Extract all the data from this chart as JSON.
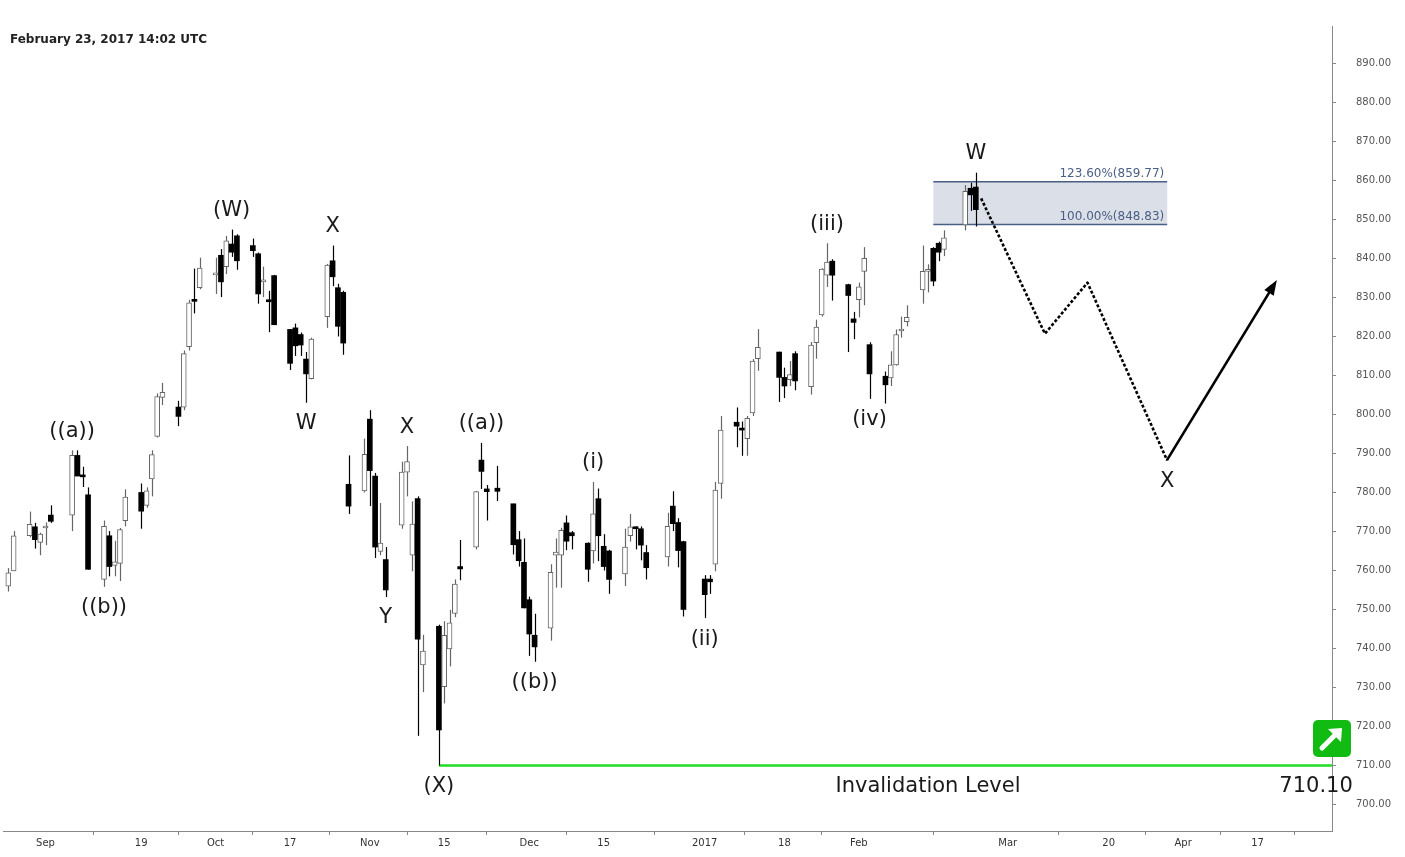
{
  "chart_data": {
    "type": "candlestick",
    "subtitle": "February 23, 2017 14:02 UTC",
    "colors": [
      "#666666",
      "#666666",
      "#666666",
      "#000000",
      "#666666",
      "#666666",
      "#000000",
      "#666666",
      "#000000",
      "#000000",
      "#000000",
      "#666666",
      "#000000",
      "#666666",
      "#666666",
      "#666666",
      "#000000",
      "#666666",
      "#666666",
      "#666666",
      "#666666",
      "#000000",
      "#666666",
      "#666666",
      "#000000",
      "#666666",
      "#666666",
      "#000000",
      "#666666",
      "#000000",
      "#000000",
      "#000000",
      "#000000",
      "#666666",
      "#000000",
      "#000000",
      "#000000",
      "#000000",
      "#000000",
      "#000000",
      "#666666",
      "#666666",
      "#000000",
      "#000000",
      "#000000",
      "#000000",
      "#666666",
      "#000000",
      "#000000",
      "#666666",
      "#000000",
      "#666666",
      "#666666",
      "#666666",
      "#000000",
      "#666666",
      "#000000",
      "#666666",
      "#666666",
      "#666666",
      "#000000",
      "#666666",
      "#000000",
      "#000000",
      "#000000",
      "#000000",
      "#000000",
      "#000000",
      "#000000",
      "#000000",
      "#666666",
      "#666666",
      "#666666",
      "#000000",
      "#000000",
      "#000000",
      "#666666",
      "#000000",
      "#000000",
      "#000000",
      "#666666",
      "#666666",
      "#000000",
      "#000000",
      "#000000",
      "#666666",
      "#000000",
      "#000000",
      "#000000",
      "#000000",
      "#000000",
      "#666666",
      "#666666",
      "#000000",
      "#000000",
      "#666666",
      "#666666",
      "#666666",
      "#000000",
      "#000000",
      "#666666",
      "#000000",
      "#666666",
      "#666666",
      "#666666",
      "#666666",
      "#000000",
      "#000000",
      "#000000",
      "#666666",
      "#666666",
      "#000000",
      "#000000",
      "#666666",
      "#666666",
      "#666666",
      "#666666",
      "#666666",
      "#666666",
      "#000000",
      "#000000",
      "#666666",
      "#666666",
      "#000000",
      "#000000"
    ],
    "x": [
      "2016-08-25",
      "2016-08-26",
      "2016-08-29",
      "2016-08-30",
      "2016-08-31",
      "2016-09-01",
      "2016-09-02",
      "2016-09-06",
      "2016-09-07",
      "2016-09-08",
      "2016-09-09",
      "2016-09-12",
      "2016-09-13",
      "2016-09-14",
      "2016-09-15",
      "2016-09-16",
      "2016-09-19",
      "2016-09-20",
      "2016-09-21",
      "2016-09-22",
      "2016-09-23",
      "2016-09-26",
      "2016-09-27",
      "2016-09-28",
      "2016-09-29",
      "2016-09-30",
      "2016-10-03",
      "2016-10-04",
      "2016-10-05",
      "2016-10-06",
      "2016-10-07",
      "2016-10-10",
      "2016-10-11",
      "2016-10-12",
      "2016-10-13",
      "2016-10-14",
      "2016-10-17",
      "2016-10-18",
      "2016-10-19",
      "2016-10-20",
      "2016-10-21",
      "2016-10-24",
      "2016-10-25",
      "2016-10-26",
      "2016-10-27",
      "2016-10-28",
      "2016-10-31",
      "2016-11-01",
      "2016-11-02",
      "2016-11-03",
      "2016-11-04",
      "2016-11-07",
      "2016-11-08",
      "2016-11-09",
      "2016-11-10",
      "2016-11-11",
      "2016-11-14",
      "2016-11-15",
      "2016-11-16",
      "2016-11-17",
      "2016-11-18",
      "2016-11-21",
      "2016-11-22",
      "2016-11-23",
      "2016-11-25",
      "2016-11-28",
      "2016-11-29",
      "2016-11-30",
      "2016-12-01",
      "2016-12-02",
      "2016-12-05",
      "2016-12-06",
      "2016-12-07",
      "2016-12-08",
      "2016-12-09",
      "2016-12-12",
      "2016-12-13",
      "2016-12-14",
      "2016-12-15",
      "2016-12-16",
      "2016-12-19",
      "2016-12-20",
      "2016-12-21",
      "2016-12-22",
      "2016-12-23",
      "2016-12-27",
      "2016-12-28",
      "2016-12-29",
      "2016-12-30",
      "2017-01-03",
      "2017-01-04",
      "2017-01-05",
      "2017-01-06",
      "2017-01-09",
      "2017-01-10",
      "2017-01-11",
      "2017-01-12",
      "2017-01-13",
      "2017-01-17",
      "2017-01-18",
      "2017-01-19",
      "2017-01-20",
      "2017-01-23",
      "2017-01-24",
      "2017-01-25",
      "2017-01-26",
      "2017-01-27",
      "2017-01-30",
      "2017-01-31",
      "2017-02-01",
      "2017-02-02",
      "2017-02-03",
      "2017-02-06",
      "2017-02-07",
      "2017-02-08",
      "2017-02-09",
      "2017-02-10",
      "2017-02-13",
      "2017-02-14",
      "2017-02-15",
      "2017-02-16",
      "2017-02-17",
      "2017-02-21",
      "2017-02-22",
      "2017-02-23"
    ],
    "ohlc": [
      [
        756.1,
        760.7,
        754.7,
        759.5
      ],
      [
        760.0,
        770.2,
        759.9,
        769.0
      ],
      [
        769.0,
        775.2,
        768.6,
        771.9
      ],
      [
        771.3,
        772.3,
        765.7,
        768.0
      ],
      [
        767.3,
        769.8,
        764.0,
        769.4
      ],
      [
        771.0,
        772.4,
        766.6,
        771.0
      ],
      [
        774.3,
        776.8,
        772.3,
        772.7
      ],
      [
        774.3,
        790.9,
        770.2,
        789.6
      ],
      [
        789.6,
        790.9,
        784.3,
        784.3
      ],
      [
        784.3,
        786.7,
        781.5,
        784.1
      ],
      [
        779.5,
        781.4,
        760.3,
        760.4
      ],
      [
        757.8,
        772.9,
        755.9,
        771.4
      ],
      [
        769.0,
        770.2,
        758.6,
        761.1
      ],
      [
        761.4,
        767.7,
        758.6,
        762.3
      ],
      [
        761.9,
        771.0,
        757.4,
        770.6
      ],
      [
        772.9,
        780.9,
        771.4,
        778.9
      ],
      [
        780.1,
        782.4,
        770.8,
        775.3
      ],
      [
        776.8,
        781.4,
        776.2,
        780.5
      ],
      [
        783.6,
        790.9,
        779.1,
        789.8
      ],
      [
        794.5,
        805.5,
        794.2,
        804.7
      ],
      [
        804.5,
        808.2,
        802.5,
        805.8
      ],
      [
        802.0,
        803.6,
        797.1,
        799.6
      ],
      [
        802.0,
        816.5,
        801.2,
        815.7
      ],
      [
        817.5,
        829.5,
        816.5,
        828.7
      ],
      [
        829.3,
        837.5,
        826.0,
        829.1
      ],
      [
        832.6,
        840.3,
        832.2,
        837.6
      ],
      [
        835.9,
        840.3,
        831.0,
        836.2
      ],
      [
        840.9,
        842.5,
        830.2,
        834.1
      ],
      [
        838.0,
        845.9,
        836.1,
        844.6
      ],
      [
        843.8,
        847.5,
        840.5,
        841.7
      ],
      [
        845.9,
        846.3,
        837.2,
        839.5
      ],
      [
        843.4,
        845.2,
        840.5,
        842.1
      ],
      [
        841.3,
        841.6,
        828.5,
        831.0
      ],
      [
        834.1,
        838.0,
        830.2,
        834.1
      ],
      [
        829.2,
        831.8,
        821.2,
        829.0
      ],
      [
        835.7,
        835.9,
        823.1,
        823.1
      ],
      [
        821.9,
        822.0,
        811.5,
        813.2
      ],
      [
        822.3,
        823.4,
        815.1,
        817.7
      ],
      [
        820.6,
        821.1,
        815.1,
        817.9
      ],
      [
        814.3,
        816.1,
        803.1,
        810.5
      ],
      [
        809.3,
        819.8,
        809.1,
        819.4
      ],
      [
        825.2,
        838.7,
        822.3,
        838.4
      ],
      [
        839.5,
        843.4,
        833.0,
        835.4
      ],
      [
        832.6,
        833.6,
        820.1,
        822.7
      ],
      [
        831.4,
        831.8,
        815.4,
        818.4
      ],
      [
        782.2,
        789.6,
        774.6,
        776.6
      ],
      [
        780.5,
        793.9,
        780.1,
        789.9
      ],
      [
        798.9,
        801.2,
        776.6,
        785.7
      ],
      [
        784.3,
        785.1,
        763.3,
        766.1
      ],
      [
        765.0,
        777.4,
        764.0,
        767.1
      ],
      [
        762.9,
        766.1,
        753.3,
        755.1
      ],
      [
        771.7,
        788.0,
        770.8,
        785.3
      ],
      [
        785.3,
        792.0,
        779.1,
        788.0
      ],
      [
        764.0,
        777.8,
        759.9,
        772.0
      ],
      [
        778.5,
        779.1,
        717.7,
        742.5
      ],
      [
        735.9,
        743.6,
        728.9,
        739.4
      ],
      [
        745.8,
        746.2,
        710.1,
        719.2
      ],
      [
        730.3,
        747.1,
        726.0,
        743.5
      ],
      [
        740.0,
        750.0,
        735.5,
        746.7
      ],
      [
        749.1,
        757.8,
        748.1,
        756.6
      ],
      [
        761.1,
        767.9,
        757.6,
        760.5
      ],
      [
        766.1,
        780.5,
        765.5,
        780.3
      ],
      [
        788.4,
        792.8,
        781.0,
        785.5
      ],
      [
        781.0,
        782.0,
        772.9,
        780.3
      ],
      [
        781.2,
        786.9,
        777.9,
        780.4
      ],
      [
        777.2,
        777.2,
        764.2,
        766.7
      ],
      [
        768.0,
        770.2,
        761.1,
        762.6
      ],
      [
        762.2,
        768.3,
        750.4,
        750.5
      ],
      [
        752.6,
        753.4,
        738.2,
        743.8
      ],
      [
        743.5,
        749.0,
        736.7,
        740.5
      ],
      [
        745.3,
        761.7,
        742.1,
        759.6
      ],
      [
        764.0,
        768.3,
        755.7,
        764.8
      ],
      [
        764.0,
        771.0,
        755.7,
        770.4
      ],
      [
        772.3,
        774.2,
        765.3,
        767.6
      ],
      [
        769.8,
        770.2,
        765.5,
        769.0
      ],
      [
        767.1,
        767.3,
        757.2,
        760.4
      ],
      [
        765.1,
        782.8,
        761.9,
        774.6
      ],
      [
        778.5,
        781.1,
        762.5,
        769.0
      ],
      [
        766.3,
        769.4,
        760.1,
        761.1
      ],
      [
        765.1,
        765.4,
        754.1,
        757.8
      ],
      [
        759.2,
        770.8,
        756.1,
        766.1
      ],
      [
        769.0,
        774.6,
        767.5,
        771.3
      ],
      [
        771.0,
        771.4,
        765.5,
        770.8
      ],
      [
        770.8,
        771.4,
        762.7,
        766.6
      ],
      [
        764.7,
        766.6,
        757.8,
        760.8
      ],
      [
        763.6,
        774.9,
        761.1,
        771.4
      ],
      [
        776.6,
        780.4,
        770.2,
        772.1
      ],
      [
        772.4,
        773.5,
        760.9,
        765.2
      ],
      [
        767.5,
        767.7,
        748.3,
        750.1
      ],
      [
        757.9,
        758.9,
        747.9,
        753.9
      ],
      [
        757.9,
        758.9,
        754.1,
        757.2
      ],
      [
        761.7,
        782.8,
        759.9,
        780.7
      ],
      [
        782.4,
        799.7,
        778.5,
        796.1
      ],
      [
        798.1,
        801.9,
        791.7,
        797.1
      ],
      [
        796.4,
        798.3,
        789.5,
        796.1
      ],
      [
        793.9,
        799.7,
        789.5,
        799.1
      ],
      [
        800.5,
        814.3,
        799.7,
        813.8
      ],
      [
        814.4,
        822.0,
        811.3,
        817.3
      ],
      [
        816.1,
        816.2,
        803.3,
        809.6
      ],
      [
        809.6,
        812.1,
        804.3,
        807.4
      ],
      [
        809.0,
        813.8,
        807.4,
        810.3
      ],
      [
        815.7,
        816.3,
        806.3,
        808.7
      ],
      [
        807.2,
        818.7,
        805.2,
        817.9
      ],
      [
        818.5,
        824.4,
        814.4,
        822.5
      ],
      [
        825.6,
        837.6,
        825.2,
        837.4
      ],
      [
        835.8,
        844.0,
        832.8,
        839.2
      ],
      [
        839.4,
        839.9,
        829.3,
        835.8
      ],
      [
        833.4,
        833.6,
        816.1,
        830.6
      ],
      [
        824.6,
        826.4,
        819.4,
        823.7
      ],
      [
        829.5,
        833.9,
        825.0,
        832.8
      ],
      [
        836.8,
        843.0,
        828.1,
        840.1
      ],
      [
        818.0,
        818.6,
        804.1,
        810.5
      ],
      [
        809.9,
        811.1,
        802.9,
        807.7
      ],
      [
        809.5,
        816.3,
        807.4,
        812.8
      ],
      [
        812.8,
        821.9,
        812.6,
        820.6
      ],
      [
        821.5,
        825.2,
        819.8,
        822.0
      ],
      [
        823.9,
        828.1,
        822.7,
        825.0
      ],
      [
        832.0,
        843.4,
        828.5,
        836.8
      ],
      [
        836.8,
        838.6,
        831.4,
        836.8
      ],
      [
        842.7,
        843.0,
        833.0,
        834.3
      ],
      [
        844.0,
        844.4,
        839.4,
        841.7
      ],
      [
        842.4,
        847.3,
        840.7,
        845.4
      ],
      [
        848.7,
        858.9,
        847.3,
        857.3
      ],
      [
        858.1,
        859.5,
        852.3,
        856.4
      ],
      [
        858.4,
        862.1,
        848.3,
        852.6
      ]
    ],
    "series": [
      {
        "type": "line",
        "name": "123.60%(859.77)",
        "color": "#4a5f85",
        "x": [
          "2017-02-15",
          "2017-03-31"
        ],
        "values": [
          859.77,
          859.77
        ],
        "lower": [
          848.83,
          848.83
        ],
        "upper": [
          859.77,
          859.77
        ]
      },
      {
        "type": "line",
        "name": "100.00%(848.83)",
        "color": "#4a5f85",
        "x": [
          "2017-02-15",
          "2017-03-31"
        ],
        "values": [
          848.83,
          848.83
        ]
      },
      {
        "type": "line",
        "color": "#22dd22",
        "x": [
          "2016-11-14",
          "2017-05-01"
        ],
        "values": [
          710.1,
          710.1
        ]
      },
      {
        "type": "line",
        "color": "#000000",
        "line_style": "dotted",
        "x": [
          "2017-02-24",
          "2017-03-08",
          "2017-03-16",
          "2017-03-31"
        ],
        "values": [
          855.5,
          820.8,
          833.9,
          788.3
        ]
      }
    ],
    "marker": "none",
    "xlim": [
      "2016-08-24",
      "2017-05-01"
    ],
    "xticks": [
      {
        "value": "2016-09-01",
        "label": "Sep"
      },
      {
        "value": "2016-09-19",
        "label": "19"
      },
      {
        "value": "2016-10-03",
        "label": "Oct"
      },
      {
        "value": "2016-10-17",
        "label": "17"
      },
      {
        "value": "2016-11-01",
        "label": "Nov"
      },
      {
        "value": "2016-11-15",
        "label": "15"
      },
      {
        "value": "2016-12-01",
        "label": "Dec"
      },
      {
        "value": "2016-12-15",
        "label": "15"
      },
      {
        "value": "2017-01-03",
        "label": "2017"
      },
      {
        "value": "2017-01-18",
        "label": "18"
      },
      {
        "value": "2017-02-01",
        "label": "Feb"
      },
      {
        "value": "2017-03-01",
        "label": "Mar"
      },
      {
        "value": "2017-03-20",
        "label": "20"
      },
      {
        "value": "2017-04-03",
        "label": "Apr"
      },
      {
        "value": "2017-04-17",
        "label": "17"
      }
    ],
    "ylim": [
      693.3,
      899.7
    ],
    "yticks": [
      {
        "value": 700,
        "label": "700.00"
      },
      {
        "value": 710,
        "label": "710.00"
      },
      {
        "value": 720,
        "label": "720.00"
      },
      {
        "value": 730,
        "label": "730.00"
      },
      {
        "value": 740,
        "label": "740.00"
      },
      {
        "value": 750,
        "label": "750.00"
      },
      {
        "value": 760,
        "label": "760.00"
      },
      {
        "value": 770,
        "label": "770.00"
      },
      {
        "value": 780,
        "label": "780.00"
      },
      {
        "value": 790,
        "label": "790.00"
      },
      {
        "value": 800,
        "label": "800.00"
      },
      {
        "value": 810,
        "label": "810.00"
      },
      {
        "value": 820,
        "label": "820.00"
      },
      {
        "value": 830,
        "label": "830.00"
      },
      {
        "value": 840,
        "label": "840.00"
      },
      {
        "value": 850,
        "label": "850.00"
      },
      {
        "value": 860,
        "label": "860.00"
      },
      {
        "value": 870,
        "label": "870.00"
      },
      {
        "value": 880,
        "label": "880.00"
      },
      {
        "value": 890,
        "label": "890.00"
      }
    ],
    "annotations": [
      {
        "text": "((a))",
        "x": "2016-09-06",
        "y": 790.9
      },
      {
        "text": "((b))",
        "x": "2016-09-12",
        "y": 755.9
      },
      {
        "text": "(W)",
        "x": "2016-10-06",
        "y": 847.5
      },
      {
        "text": "W",
        "x": "2016-10-20",
        "y": 803.1
      },
      {
        "text": "X",
        "x": "2016-10-25",
        "y": 843.4
      },
      {
        "text": "X",
        "x": "2016-11-08",
        "y": 792.0
      },
      {
        "text": "Y",
        "x": "2016-11-04",
        "y": 753.3
      },
      {
        "text": "((a))",
        "x": "2016-11-22",
        "y": 792.8
      },
      {
        "text": "(X)",
        "x": "2016-11-14",
        "y": 710.1
      },
      {
        "text": "((b))",
        "x": "2016-12-02",
        "y": 736.7
      },
      {
        "text": "(i)",
        "x": "2016-12-13",
        "y": 782.8
      },
      {
        "text": "(ii)",
        "x": "2017-01-03",
        "y": 747.9
      },
      {
        "text": "(iii)",
        "x": "2017-01-26",
        "y": 844.0
      },
      {
        "text": "(iv)",
        "x": "2017-02-03",
        "y": 804.1
      },
      {
        "text": "W",
        "x": "2017-02-23",
        "y": 862.1
      },
      {
        "text": "X",
        "x": "2017-03-31",
        "y": 788.3
      },
      {
        "text": "Invalidation Level",
        "x": "2017-02-14",
        "y": 710.1
      },
      {
        "text": "710.10",
        "x": "2017-04-28",
        "y": 710.1
      }
    ]
  }
}
